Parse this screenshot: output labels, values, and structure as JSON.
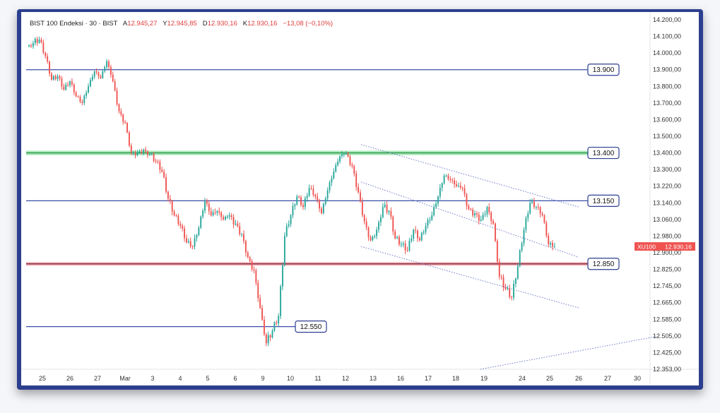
{
  "header": {
    "symbol": "BIST 100 Endeksi · 30 · BIST",
    "open_label": "A",
    "open": "12.945,27",
    "high_label": "Y",
    "high": "12.945,85",
    "low_label": "D",
    "low": "12.930,16",
    "close_label": "K",
    "close": "12.930,16",
    "change": "−13,08 (−0,10%)"
  },
  "price_tag": {
    "symbol": "XU100",
    "value": "12.930,16"
  },
  "colors": {
    "up": "#26a69a",
    "down": "#ef5350",
    "blue_level": "#3a4fa8",
    "green_level": "#34c759",
    "red_level": "#e8394e",
    "channel": "#6e78c7",
    "frame": "#2c3f8f"
  },
  "chart_data": {
    "type": "candlestick",
    "title": "BIST 100 Endeksi · 30 · BIST",
    "ylim": [
      12353,
      14200
    ],
    "y_ticks": [
      "14.200,00",
      "14.100,00",
      "14.000,00",
      "13.900,00",
      "13.800,00",
      "13.700,00",
      "13.600,00",
      "13.500,00",
      "13.400,00",
      "13.300,00",
      "13.220,00",
      "13.140,00",
      "13.060,00",
      "12.980,00",
      "12.900,00",
      "12.825,00",
      "12.745,00",
      "12.665,00",
      "12.585,00",
      "12.505,00",
      "12.425,00",
      "12.353,00"
    ],
    "x_ticks": [
      "25",
      "26",
      "27",
      "Mar",
      "3",
      "4",
      "5",
      "6",
      "9",
      "10",
      "11",
      "12",
      "13",
      "16",
      "17",
      "18",
      "19",
      "24",
      "25",
      "26",
      "27",
      "30"
    ],
    "levels": [
      {
        "label": "13.900",
        "value": 13900,
        "style": "blue"
      },
      {
        "label": "13.400",
        "value": 13400,
        "style": "green"
      },
      {
        "label": "13.150",
        "value": 13150,
        "style": "blue"
      },
      {
        "label": "12.850",
        "value": 12850,
        "style": "red"
      },
      {
        "label": "12.550",
        "value": 12550,
        "style": "blue"
      }
    ],
    "series": [
      {
        "x": [
          "25",
          "25",
          "25",
          "25",
          "26",
          "26",
          "26",
          "26",
          "26",
          "27",
          "27",
          "27",
          "27",
          "27",
          "Mar",
          "Mar",
          "Mar",
          "3",
          "3",
          "3",
          "3",
          "3",
          "4",
          "4",
          "4",
          "4",
          "4",
          "5",
          "5",
          "5",
          "5",
          "6",
          "6",
          "6",
          "6",
          "6",
          "9",
          "9",
          "9",
          "9",
          "9",
          "10",
          "10",
          "10",
          "10",
          "11",
          "11",
          "11",
          "11",
          "11",
          "12",
          "12",
          "12",
          "12",
          "12",
          "13",
          "13",
          "13",
          "13",
          "13",
          "16",
          "16",
          "16",
          "16",
          "16",
          "17",
          "17",
          "17",
          "17",
          "17",
          "18",
          "18",
          "18",
          "18",
          "18",
          "19",
          "19",
          "19",
          "19",
          "19",
          "24",
          "24",
          "24",
          "24",
          "25",
          "25"
        ],
        "close": [
          14060,
          14080,
          13980,
          13840,
          13860,
          13780,
          13830,
          13740,
          13700,
          13800,
          13890,
          13850,
          13950,
          13830,
          13650,
          13580,
          13400,
          13400,
          13420,
          13390,
          13350,
          13290,
          13160,
          13080,
          13030,
          12950,
          12930,
          13020,
          13150,
          13080,
          13100,
          13060,
          13080,
          13040,
          12990,
          12880,
          12820,
          12640,
          12470,
          12530,
          12600,
          12980,
          13080,
          13170,
          13120,
          13210,
          13170,
          13090,
          13200,
          13290,
          13380,
          13400,
          13320,
          13190,
          13050,
          12960,
          13010,
          13120,
          13100,
          12970,
          12940,
          12910,
          13010,
          12960,
          13030,
          13080,
          13170,
          13270,
          13250,
          13220,
          13210,
          13110,
          13090,
          13060,
          13120,
          13040,
          12790,
          12730,
          12690,
          12840,
          13010,
          13140,
          13120,
          13080,
          12940,
          12930
        ]
      }
    ],
    "channel": {
      "upper": [
        {
          "x": "12",
          "y": 13450
        },
        {
          "x": "26",
          "y": 13120
        }
      ],
      "middle": [
        {
          "x": "12",
          "y": 13240
        },
        {
          "x": "26",
          "y": 12880
        }
      ],
      "lower": [
        {
          "x": "12",
          "y": 12930
        },
        {
          "x": "26",
          "y": 12640
        }
      ],
      "ray": [
        {
          "x": "19",
          "y": 12353
        },
        {
          "x": "30",
          "y": 12505
        }
      ]
    }
  }
}
